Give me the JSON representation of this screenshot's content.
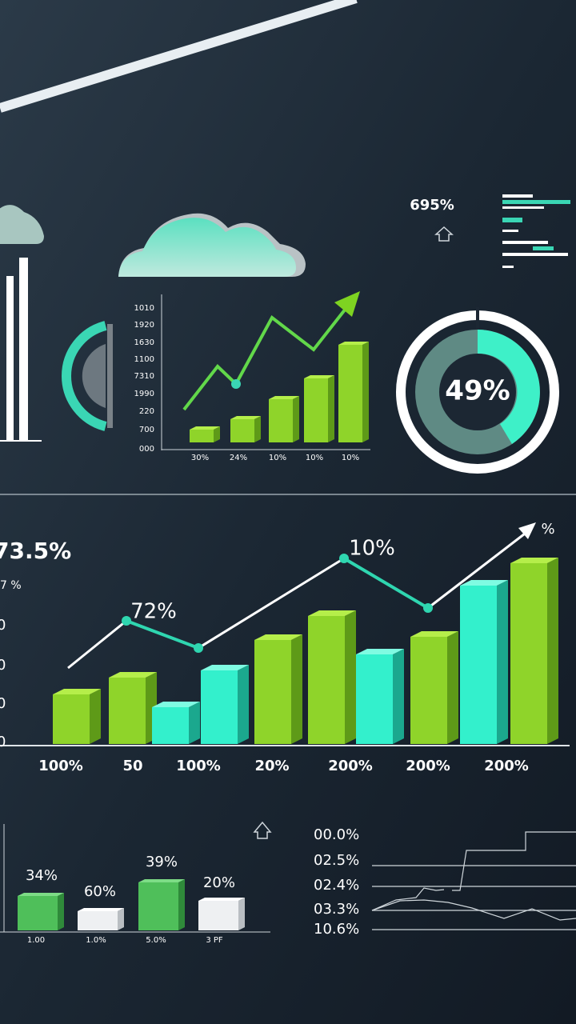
{
  "top_right": {
    "percent": "695%"
  },
  "small_chart": {
    "y_labels": [
      "1010",
      "1920",
      "1630",
      "1100",
      "7310",
      "1990",
      "220",
      "700",
      "000"
    ],
    "x_labels": [
      "30%",
      "24%",
      "10%",
      "10%",
      "10%"
    ]
  },
  "donut": {
    "label": "49%"
  },
  "main_chart": {
    "headline": "73.5%",
    "sub_label": "7 %",
    "y_labels": [
      "0",
      "0",
      "0",
      "0"
    ],
    "annotations": [
      "72%",
      "10%",
      "%"
    ],
    "x_labels": [
      "100%",
      "50",
      "100%",
      "20%",
      "200%",
      "200%",
      "200%"
    ]
  },
  "bottom_left": {
    "bar_labels": [
      "34%",
      "60%",
      "39%",
      "20%"
    ],
    "x_labels": [
      "1.00",
      "1.0%",
      "5.0%",
      "3 PF"
    ]
  },
  "bottom_right": {
    "labels": [
      "00.0%",
      "02.5%",
      "02.4%",
      "03.3%",
      "10.6%"
    ]
  }
}
